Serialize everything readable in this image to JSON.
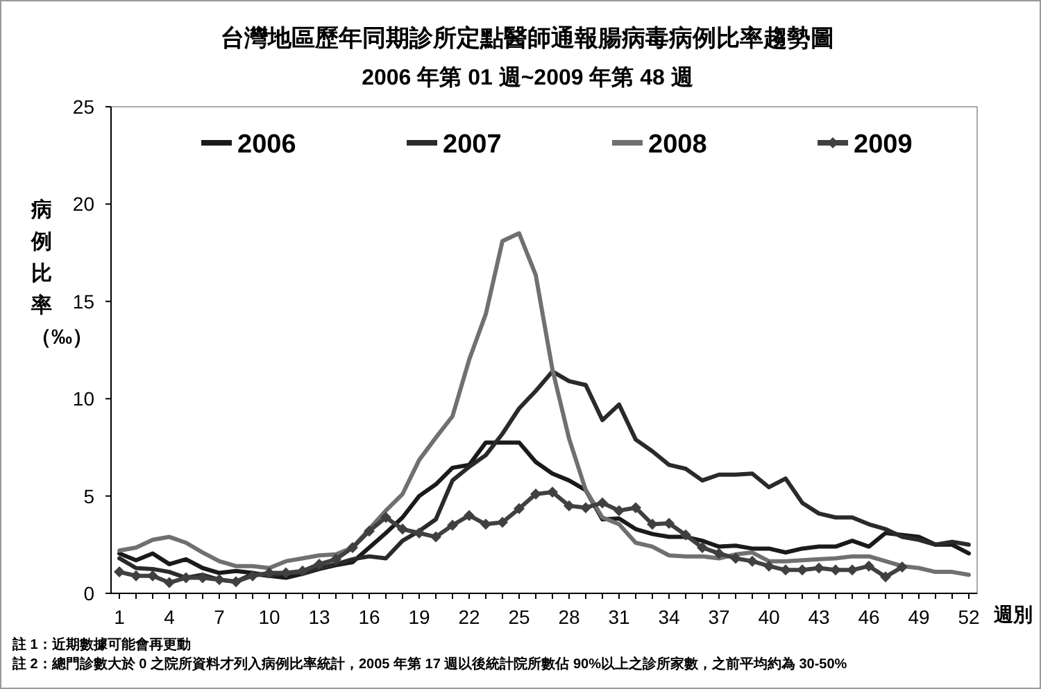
{
  "chart_data": {
    "type": "line",
    "title": "台灣地區歷年同期診所定點醫師通報腸病毒病例比率趨勢圖",
    "subtitle": "2006 年第 01 週~2009 年第 48 週",
    "xlabel": "週別",
    "ylabel": "病例比率（‰）",
    "annotations": [
      "註 1：近期數據可能會再更動",
      "註 2：總門診數大於 0 之院所資料才列入病例比率統計，2005 年第 17 週以後統計院所數佔 90%以上之診所家數，之前平均約為 30-50%"
    ],
    "x": [
      1,
      2,
      3,
      4,
      5,
      6,
      7,
      8,
      9,
      10,
      11,
      12,
      13,
      14,
      15,
      16,
      17,
      18,
      19,
      20,
      21,
      22,
      23,
      24,
      25,
      26,
      27,
      28,
      29,
      30,
      31,
      32,
      33,
      34,
      35,
      36,
      37,
      38,
      39,
      40,
      41,
      42,
      43,
      44,
      45,
      46,
      47,
      48,
      49,
      50,
      51,
      52
    ],
    "xlim": [
      0.5,
      52.5
    ],
    "xticks": [
      1,
      {
        "value": 2,
        "label": null
      },
      {
        "value": 3,
        "label": null
      },
      4,
      {
        "value": 5,
        "label": null
      },
      {
        "value": 6,
        "label": null
      },
      7,
      {
        "value": 8,
        "label": null
      },
      {
        "value": 9,
        "label": null
      },
      10,
      {
        "value": 11,
        "label": null
      },
      {
        "value": 12,
        "label": null
      },
      13,
      {
        "value": 14,
        "label": null
      },
      {
        "value": 15,
        "label": null
      },
      16,
      {
        "value": 17,
        "label": null
      },
      {
        "value": 18,
        "label": null
      },
      19,
      {
        "value": 20,
        "label": null
      },
      {
        "value": 21,
        "label": null
      },
      22,
      {
        "value": 23,
        "label": null
      },
      {
        "value": 24,
        "label": null
      },
      25,
      {
        "value": 26,
        "label": null
      },
      {
        "value": 27,
        "label": null
      },
      28,
      {
        "value": 29,
        "label": null
      },
      {
        "value": 30,
        "label": null
      },
      31,
      {
        "value": 32,
        "label": null
      },
      {
        "value": 33,
        "label": null
      },
      34,
      {
        "value": 35,
        "label": null
      },
      {
        "value": 36,
        "label": null
      },
      37,
      {
        "value": 38,
        "label": null
      },
      {
        "value": 39,
        "label": null
      },
      40,
      {
        "value": 41,
        "label": null
      },
      {
        "value": 42,
        "label": null
      },
      43,
      {
        "value": 44,
        "label": null
      },
      {
        "value": 45,
        "label": null
      },
      46,
      {
        "value": 47,
        "label": null
      },
      {
        "value": 48,
        "label": null
      },
      49,
      {
        "value": 50,
        "label": null
      },
      {
        "value": 51,
        "label": null
      },
      52
    ],
    "ylim": [
      0,
      25
    ],
    "yticks": [
      0,
      5,
      10,
      15,
      20,
      25
    ],
    "grid": false,
    "legend": "top",
    "line_style": "solid",
    "series": [
      {
        "name": "2006",
        "color": "#1a1a1a",
        "marker": "none",
        "values": [
          2.05,
          1.7,
          2.05,
          1.5,
          1.75,
          1.3,
          1.05,
          1.15,
          1.05,
          0.9,
          0.8,
          1.0,
          1.25,
          1.45,
          1.6,
          2.35,
          3.1,
          3.9,
          5.0,
          5.6,
          6.45,
          6.6,
          7.75,
          7.75,
          7.75,
          6.75,
          6.15,
          5.8,
          5.3,
          3.8,
          3.85,
          3.3,
          3.05,
          2.9,
          2.9,
          2.7,
          2.4,
          2.45,
          2.3,
          2.3,
          2.1,
          2.3,
          2.4,
          2.4,
          2.7,
          2.4,
          3.1,
          3.0,
          2.9,
          2.5,
          2.5,
          2.05
        ]
      },
      {
        "name": "2007",
        "color": "#2a2a2a",
        "marker": "none",
        "values": [
          1.8,
          1.3,
          1.25,
          1.1,
          0.8,
          0.95,
          0.7,
          0.6,
          1.0,
          0.9,
          1.05,
          1.05,
          1.3,
          1.5,
          1.75,
          1.9,
          1.8,
          2.7,
          3.2,
          3.8,
          5.8,
          6.5,
          7.1,
          8.2,
          9.5,
          10.4,
          11.4,
          10.9,
          10.7,
          8.9,
          9.7,
          7.9,
          7.3,
          6.6,
          6.4,
          5.8,
          6.1,
          6.1,
          6.15,
          5.45,
          5.9,
          4.65,
          4.1,
          3.9,
          3.9,
          3.55,
          3.3,
          2.9,
          2.75,
          2.5,
          2.65,
          2.5
        ]
      },
      {
        "name": "2008",
        "color": "#707070",
        "marker": "none",
        "values": [
          2.2,
          2.35,
          2.75,
          2.9,
          2.6,
          2.1,
          1.65,
          1.4,
          1.4,
          1.3,
          1.65,
          1.8,
          1.95,
          2.0,
          2.35,
          3.3,
          4.25,
          5.1,
          6.85,
          8.0,
          9.1,
          12.0,
          14.35,
          18.1,
          18.5,
          16.35,
          11.5,
          7.95,
          5.3,
          3.9,
          3.55,
          2.6,
          2.4,
          1.95,
          1.9,
          1.9,
          1.8,
          2.0,
          2.1,
          1.65,
          1.65,
          1.7,
          1.75,
          1.8,
          1.9,
          1.9,
          1.65,
          1.4,
          1.3,
          1.1,
          1.1,
          0.95
        ]
      },
      {
        "name": "2009",
        "color": "#404040",
        "marker": "diamond",
        "values": [
          1.1,
          0.9,
          0.9,
          0.55,
          0.8,
          0.8,
          0.7,
          0.6,
          0.9,
          1.05,
          1.05,
          1.15,
          1.5,
          1.75,
          2.35,
          3.2,
          3.9,
          3.3,
          3.1,
          2.9,
          3.5,
          4.0,
          3.55,
          3.65,
          4.35,
          5.1,
          5.2,
          4.5,
          4.4,
          4.65,
          4.25,
          4.4,
          3.55,
          3.6,
          3.0,
          2.35,
          2.05,
          1.8,
          1.65,
          1.4,
          1.2,
          1.2,
          1.3,
          1.2,
          1.2,
          1.4,
          0.85,
          1.35,
          null,
          null,
          null,
          null
        ]
      }
    ]
  }
}
